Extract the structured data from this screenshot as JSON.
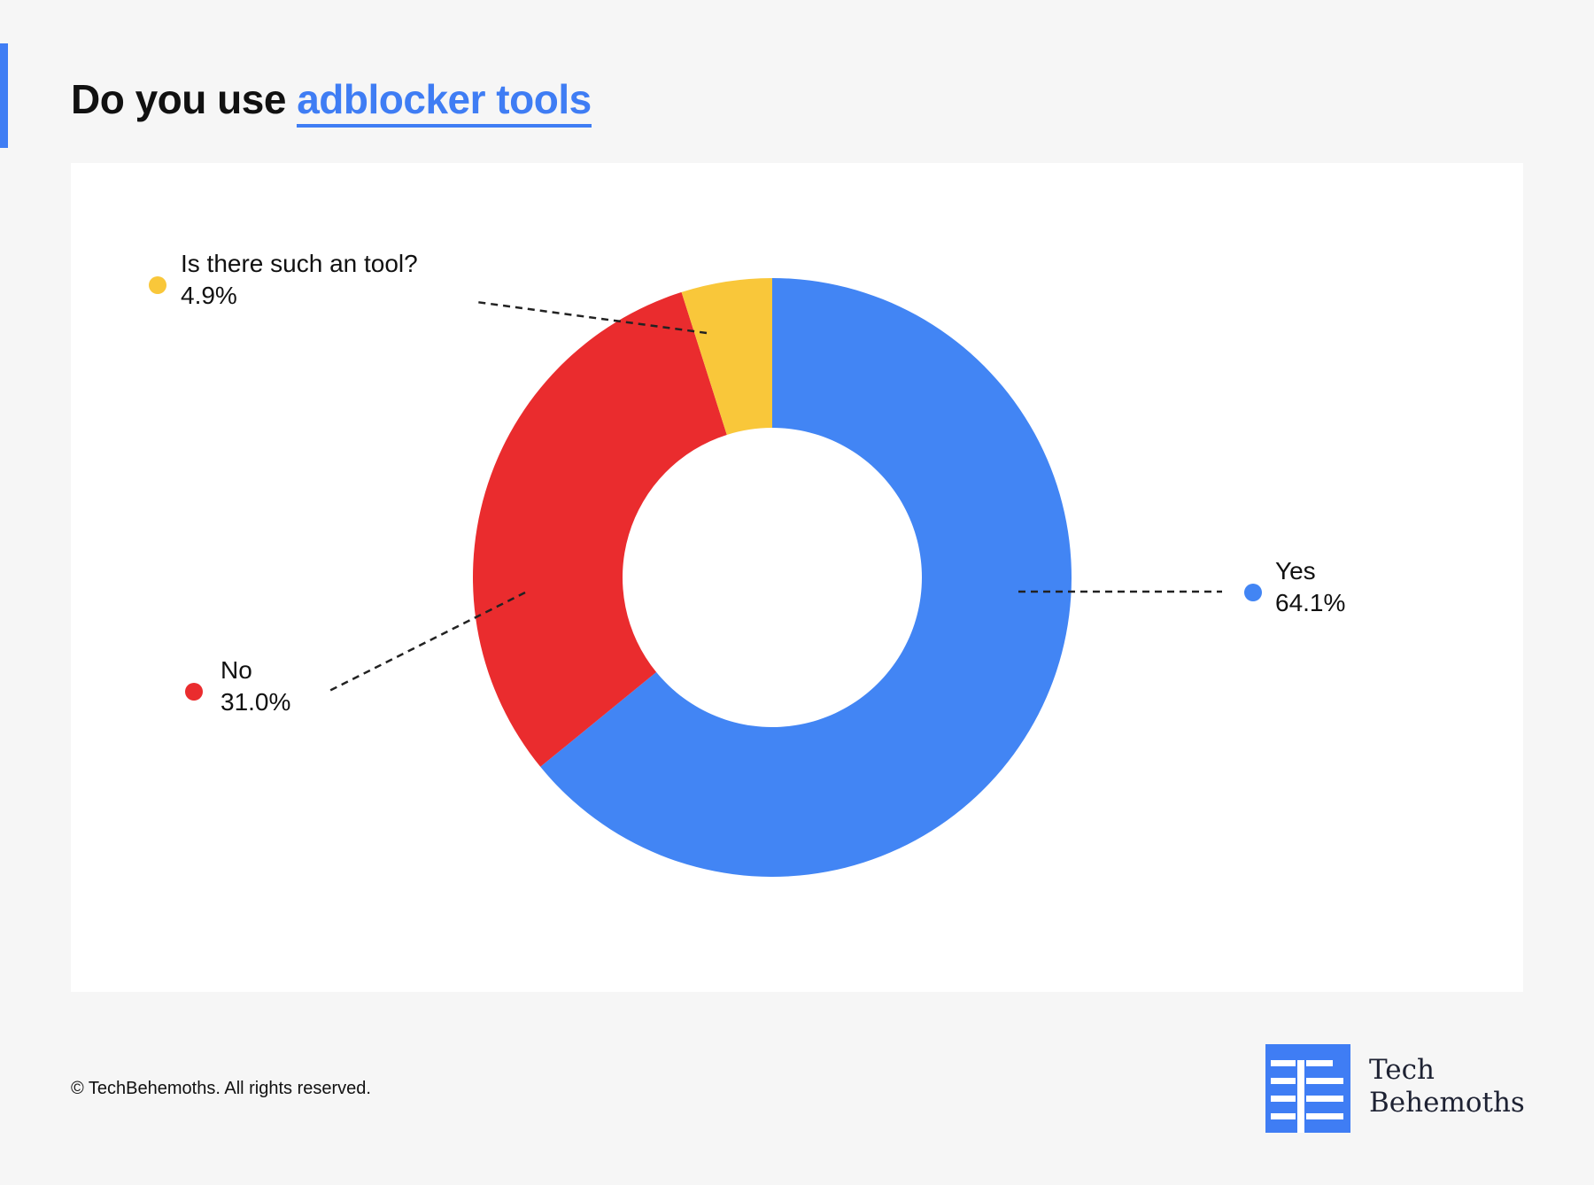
{
  "header": {
    "title_prefix": "Do you use",
    "title_highlight": "adblocker tools"
  },
  "colors": {
    "accent": "#3f7df4",
    "yes": "#4285f4",
    "no": "#ea2c2e",
    "unsure": "#f9c73a"
  },
  "chart_data": {
    "type": "pie",
    "style": "donut",
    "title": "Do you use adblocker tools",
    "slices": [
      {
        "label": "Yes",
        "value": 64.1,
        "display": "64.1%",
        "color": "#4285f4"
      },
      {
        "label": "No",
        "value": 31.0,
        "display": "31.0%",
        "color": "#ea2c2e"
      },
      {
        "label": "Is there such an tool?",
        "value": 4.9,
        "display": "4.9%",
        "color": "#f9c73a"
      }
    ],
    "legend": "callouts"
  },
  "footer": {
    "copyright": "© TechBehemoths. All rights reserved."
  },
  "logo": {
    "name_line1": "Tech",
    "name_line2": "Behemoths"
  }
}
